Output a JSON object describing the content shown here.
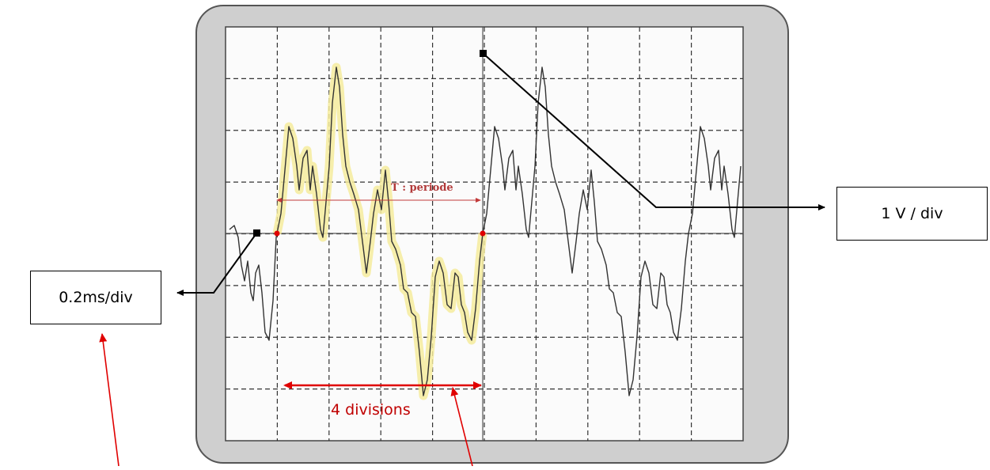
{
  "oscilloscope": {
    "grid_columns": 10,
    "grid_rows": 8
  },
  "annotations": {
    "period_label": "T : periode",
    "divisions_label": "4 divisions",
    "time_base_label": "0.2ms/div",
    "volt_scale_label": "1 V / div"
  },
  "colors": {
    "trace": "#333333",
    "grid": "#333333",
    "highlight": "#f4eb9c",
    "annotation_red": "#e00000",
    "screen_frame": "#c9c9c9",
    "screen": "#fbfbfb"
  }
}
